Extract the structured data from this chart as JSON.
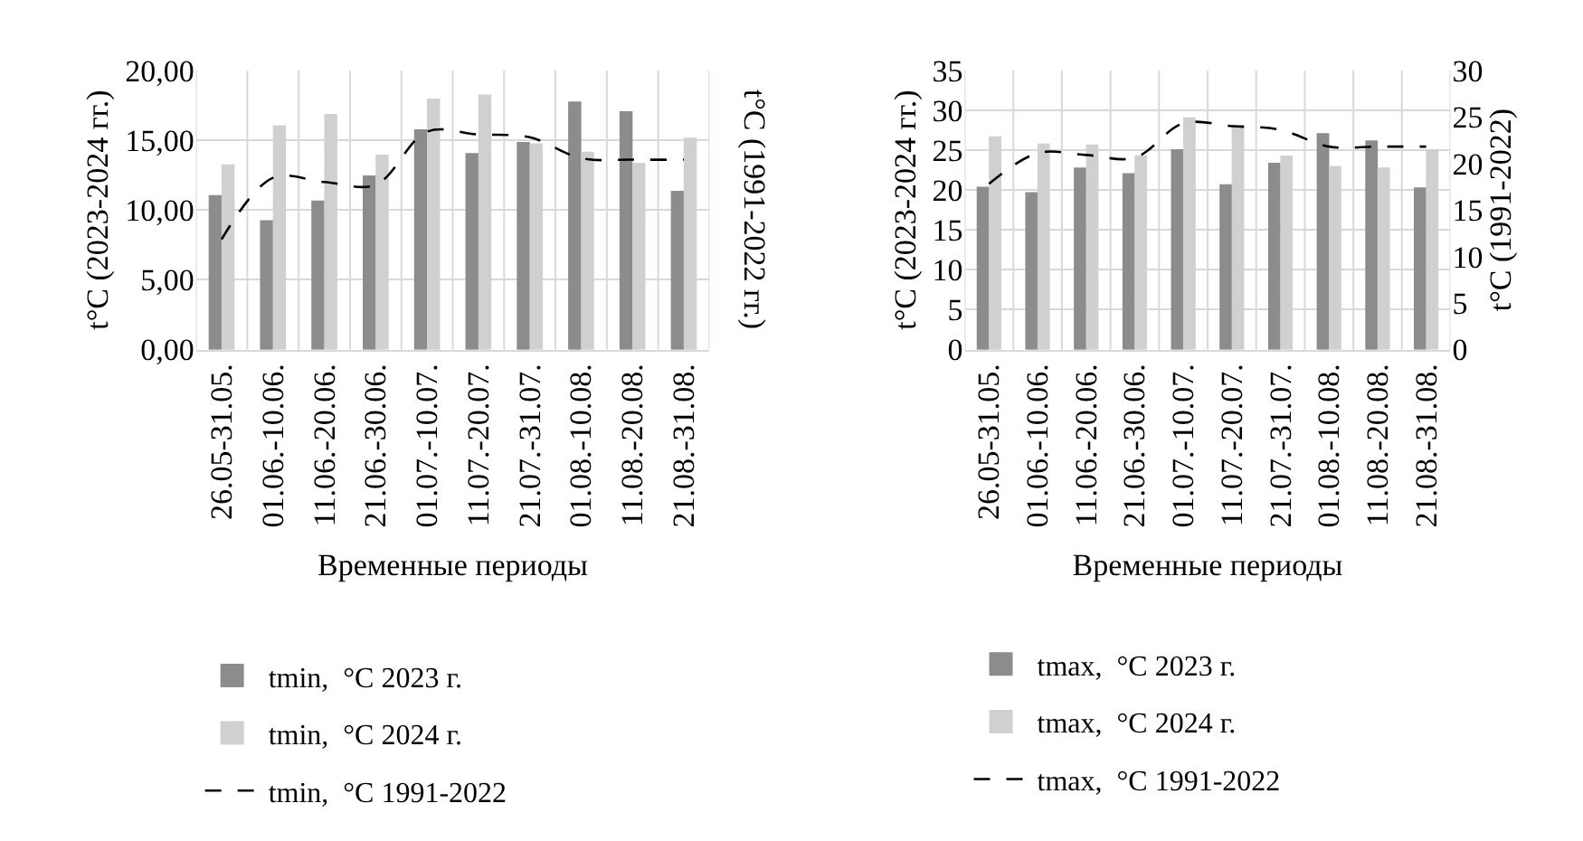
{
  "chart_data": [
    {
      "type": "bar",
      "categories": [
        "26.05-31.05.",
        "01.06.-10.06.",
        "11.06.-20.06.",
        "21.06.-30.06.",
        "01.07.-10.07.",
        "11.07.-20.07.",
        "21.07.-31.07.",
        "01.08.-10.08.",
        "11.08.-20.08.",
        "21.08.-31.08."
      ],
      "xlabel": "Временные периоды",
      "ylabel": "t°C (2023-2024 гг.)",
      "y2label": "t°C (1991-2022 гг.)",
      "ylim": [
        0,
        20
      ],
      "yticks": [
        {
          "value": 0,
          "label": "0,00"
        },
        {
          "value": 5,
          "label": "5,00"
        },
        {
          "value": 10,
          "label": "10,00"
        },
        {
          "value": 15,
          "label": "15,00"
        },
        {
          "value": 20,
          "label": "20,00"
        }
      ],
      "grid": true,
      "legend": "bottom",
      "series": [
        {
          "name": "tmin,  °C 2023 г.",
          "color": "#8c8c8c",
          "values": [
            11.0,
            9.2,
            10.6,
            12.4,
            15.7,
            14.0,
            14.8,
            17.7,
            17.0,
            11.3
          ]
        },
        {
          "name": "tmin,  °C 2024 г.",
          "color": "#d0d0d0",
          "values": [
            13.2,
            16.0,
            16.8,
            13.9,
            17.9,
            18.2,
            14.7,
            14.1,
            13.3,
            15.1
          ]
        },
        {
          "name": "tmin,  °C 1991-2022",
          "type": "line",
          "line_style": "dashed",
          "color": "#000000",
          "values": [
            7.9,
            12.3,
            12.0,
            11.8,
            15.6,
            15.4,
            15.2,
            13.7,
            13.6,
            13.6
          ]
        }
      ]
    },
    {
      "type": "bar",
      "categories": [
        "26.05-31.05.",
        "01.06.-10.06.",
        "11.06.-20.06.",
        "21.06.-30.06.",
        "01.07.-10.07.",
        "11.07.-20.07.",
        "21.07.-31.07.",
        "01.08.-10.08.",
        "11.08.-20.08.",
        "21.08.-31.08."
      ],
      "xlabel": "Временные периоды",
      "ylabel": "t°C (2023-2024 гг.)",
      "y2label": "t°C (1991-2022)",
      "ylim": [
        0,
        35
      ],
      "yticks": [
        0,
        5,
        10,
        15,
        20,
        25,
        30,
        35
      ],
      "y2lim": [
        0,
        30
      ],
      "y2ticks": [
        0,
        5,
        10,
        15,
        20,
        25,
        30
      ],
      "grid": true,
      "legend": "bottom",
      "series": [
        {
          "name": "tmax,  °C 2023 г.",
          "color": "#8c8c8c",
          "values": [
            20.3,
            19.6,
            22.7,
            22.0,
            25.0,
            20.6,
            23.3,
            27.0,
            26.1,
            20.2
          ]
        },
        {
          "name": "tmax,  °C 2024 г.",
          "color": "#d0d0d0",
          "values": [
            26.6,
            25.7,
            25.6,
            24.2,
            29.0,
            28.0,
            24.2,
            22.9,
            22.7,
            25.0
          ]
        },
        {
          "name": "tmax,  °C 1991-2022",
          "type": "line",
          "axis": "y2",
          "line_style": "dashed",
          "color": "#000000",
          "values": [
            17.8,
            21.1,
            20.9,
            20.6,
            24.3,
            24.0,
            23.6,
            21.8,
            21.8,
            21.8
          ]
        }
      ]
    }
  ]
}
